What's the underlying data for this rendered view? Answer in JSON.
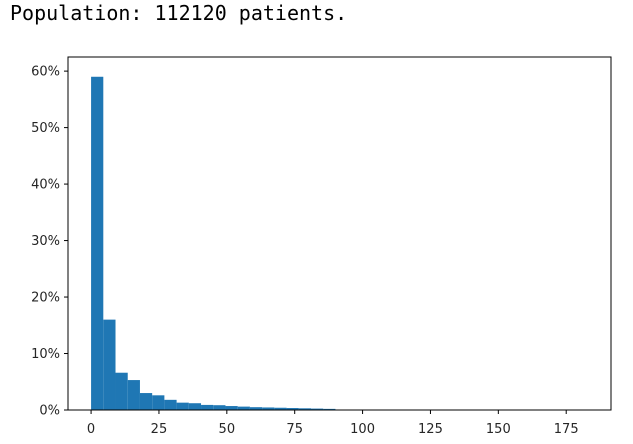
{
  "output": {
    "text": "Population: 112120 patients."
  },
  "chart_data": {
    "type": "bar",
    "title": "",
    "xlabel": "",
    "ylabel": "",
    "xlim": [
      -8.5,
      191.5
    ],
    "ylim": [
      0,
      62.5
    ],
    "x_ticks": [
      0,
      25,
      50,
      75,
      100,
      125,
      150,
      175
    ],
    "y_ticks": [
      0,
      10,
      20,
      30,
      40,
      50,
      60
    ],
    "y_tick_format": "percent",
    "grid": false,
    "bar_color": "#1f77b4",
    "bins": [
      {
        "x0": 0,
        "x1": 4.5,
        "value": 59.0
      },
      {
        "x0": 4.5,
        "x1": 9,
        "value": 16.0
      },
      {
        "x0": 9,
        "x1": 13.5,
        "value": 6.6
      },
      {
        "x0": 13.5,
        "x1": 18,
        "value": 5.3
      },
      {
        "x0": 18,
        "x1": 22.5,
        "value": 3.0
      },
      {
        "x0": 22.5,
        "x1": 27,
        "value": 2.6
      },
      {
        "x0": 27,
        "x1": 31.5,
        "value": 1.8
      },
      {
        "x0": 31.5,
        "x1": 36,
        "value": 1.3
      },
      {
        "x0": 36,
        "x1": 40.5,
        "value": 1.2
      },
      {
        "x0": 40.5,
        "x1": 45,
        "value": 0.9
      },
      {
        "x0": 45,
        "x1": 49.5,
        "value": 0.85
      },
      {
        "x0": 49.5,
        "x1": 54,
        "value": 0.7
      },
      {
        "x0": 54,
        "x1": 58.5,
        "value": 0.6
      },
      {
        "x0": 58.5,
        "x1": 63,
        "value": 0.5
      },
      {
        "x0": 63,
        "x1": 67.5,
        "value": 0.45
      },
      {
        "x0": 67.5,
        "x1": 72,
        "value": 0.4
      },
      {
        "x0": 72,
        "x1": 76.5,
        "value": 0.35
      },
      {
        "x0": 76.5,
        "x1": 81,
        "value": 0.3
      },
      {
        "x0": 81,
        "x1": 85.5,
        "value": 0.25
      },
      {
        "x0": 85.5,
        "x1": 90,
        "value": 0.2
      },
      {
        "x0": 90,
        "x1": 94.5,
        "value": 0.06
      }
    ]
  }
}
